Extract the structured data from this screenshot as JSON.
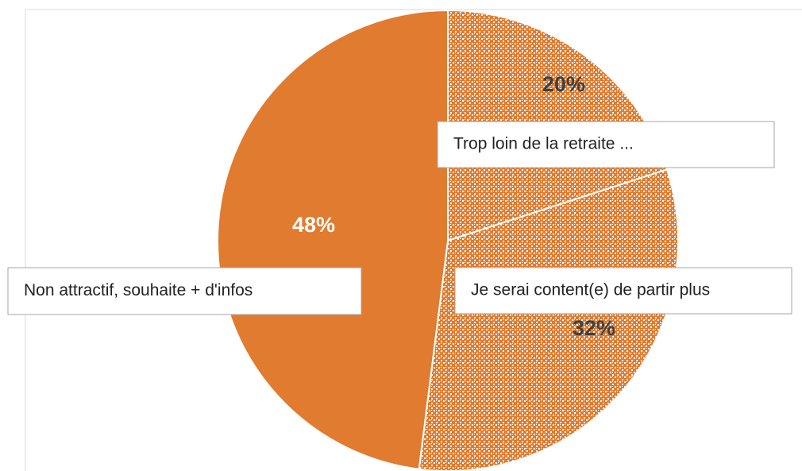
{
  "chart_data": {
    "type": "pie",
    "categories": [
      "Trop loin de la retraite ...",
      "Je serai content(e) de partir plus",
      "Non attractif, souhaite + d'infos"
    ],
    "values": [
      20,
      32,
      48
    ],
    "value_labels": [
      "20%",
      "32%",
      "48%"
    ],
    "colors": [
      "#e07b30",
      "#e07b30",
      "#e07b30"
    ],
    "patterned": [
      true,
      true,
      false
    ]
  }
}
